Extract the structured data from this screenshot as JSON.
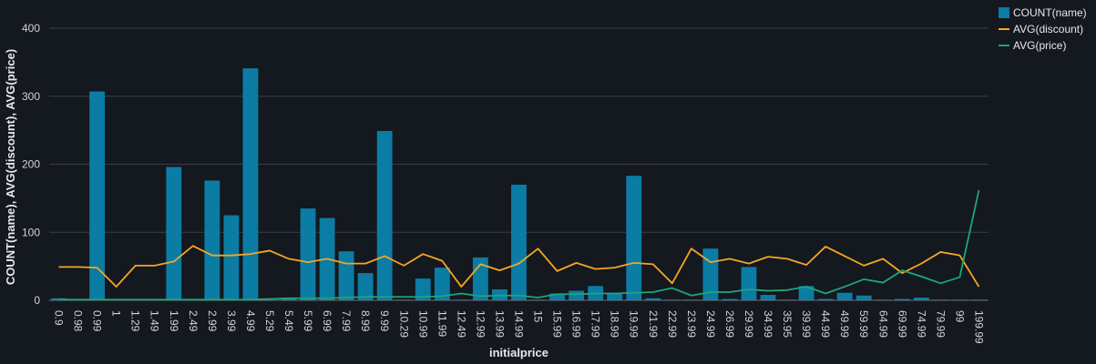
{
  "chart_data": {
    "type": "bar",
    "xlabel": "initialprice",
    "ylabel": "COUNT(name), AVG(discount), AVG(price)",
    "ylim": [
      0,
      400
    ],
    "yticks": [
      0,
      100,
      200,
      300,
      400
    ],
    "grid": true,
    "legend": "top-right",
    "categories": [
      "0.9",
      "0.98",
      "0.99",
      "1",
      "1.29",
      "1.49",
      "1.99",
      "2.49",
      "2.99",
      "3.99",
      "4.99",
      "5.29",
      "5.49",
      "5.99",
      "6.99",
      "7.99",
      "8.99",
      "9.99",
      "10.29",
      "10.99",
      "11.99",
      "12.49",
      "12.99",
      "13.99",
      "14.99",
      "15",
      "15.99",
      "16.99",
      "17.99",
      "18.99",
      "19.99",
      "21.99",
      "22.99",
      "23.99",
      "24.99",
      "26.99",
      "29.99",
      "34.99",
      "35.95",
      "39.99",
      "44.99",
      "49.99",
      "59.99",
      "64.99",
      "69.99",
      "74.99",
      "79.99",
      "99",
      "199.99"
    ],
    "series": [
      {
        "name": "COUNT(name)",
        "type": "bar",
        "color": "#0b7ca4",
        "values": [
          3,
          1,
          307,
          1,
          1,
          1,
          196,
          1,
          176,
          125,
          341,
          1,
          2,
          135,
          121,
          72,
          40,
          249,
          1,
          32,
          48,
          1,
          63,
          16,
          170,
          1,
          10,
          14,
          21,
          11,
          183,
          3,
          1,
          1,
          76,
          2,
          49,
          8,
          1,
          21,
          2,
          11,
          7,
          1,
          2,
          4,
          1,
          1,
          1
        ]
      },
      {
        "name": "AVG(discount)",
        "type": "line",
        "color": "#f5a623",
        "values": [
          49,
          49,
          48,
          20,
          51,
          51,
          57,
          80,
          66,
          66,
          68,
          73,
          61,
          56,
          61,
          54,
          54,
          65,
          51,
          68,
          58,
          20,
          53,
          44,
          54,
          76,
          43,
          55,
          46,
          48,
          55,
          53,
          25,
          76,
          56,
          61,
          54,
          64,
          61,
          52,
          79,
          65,
          51,
          61,
          40,
          54,
          71,
          66,
          20
        ]
      },
      {
        "name": "AVG(price)",
        "type": "line",
        "color": "#1fa67a",
        "values": [
          1,
          1,
          1,
          1,
          1,
          1,
          1,
          1,
          1,
          1,
          1,
          2,
          3,
          3,
          3,
          4,
          5,
          5,
          5,
          5,
          6,
          10,
          6,
          7,
          7,
          4,
          9,
          9,
          10,
          10,
          11,
          12,
          18,
          7,
          12,
          12,
          16,
          14,
          15,
          20,
          10,
          20,
          31,
          26,
          44,
          35,
          25,
          34,
          162
        ]
      }
    ]
  }
}
